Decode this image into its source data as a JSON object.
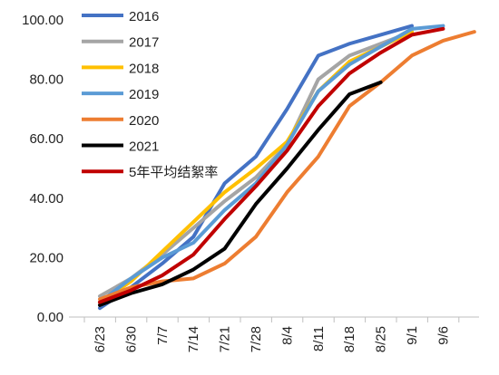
{
  "chart_data": {
    "type": "line",
    "title": "",
    "xlabel": "",
    "ylabel": "",
    "categories": [
      "6/23",
      "6/30",
      "7/7",
      "7/14",
      "7/21",
      "7/28",
      "8/4",
      "8/11",
      "8/18",
      "8/25",
      "9/1",
      "9/6",
      "",
      ""
    ],
    "ylim": [
      0,
      100
    ],
    "yticks": [
      "0.00",
      "20.00",
      "40.00",
      "60.00",
      "80.00",
      "100.00"
    ],
    "grid": false,
    "legend_position": "top-left",
    "series": [
      {
        "name": "2016",
        "color": "#4472C4",
        "values": [
          3,
          10,
          18,
          27,
          45,
          54,
          70,
          88,
          92,
          95,
          98,
          null,
          null,
          null
        ]
      },
      {
        "name": "2017",
        "color": "#A5A5A5",
        "values": [
          7,
          13,
          21,
          30,
          39,
          47,
          58,
          80,
          88,
          92,
          96,
          null,
          null,
          null
        ]
      },
      {
        "name": "2018",
        "color": "#FFC000",
        "values": [
          5,
          12,
          22,
          32,
          42,
          50,
          59,
          76,
          86,
          91,
          96,
          null,
          null,
          null
        ]
      },
      {
        "name": "2019",
        "color": "#5B9BD5",
        "values": [
          5,
          13,
          20,
          25,
          36,
          45,
          58,
          76,
          85,
          91,
          97,
          98,
          null,
          null
        ]
      },
      {
        "name": "2020",
        "color": "#ED7D31",
        "values": [
          6,
          10,
          12,
          13,
          18,
          27,
          42,
          54,
          71,
          79,
          88,
          93,
          96,
          null
        ]
      },
      {
        "name": "2021",
        "color": "#000000",
        "values": [
          4,
          8,
          11,
          16,
          23,
          38,
          50,
          63,
          75,
          79,
          null,
          null,
          null,
          null
        ]
      },
      {
        "name": "5年平均结絮率",
        "color": "#C00000",
        "values": [
          5,
          9,
          14,
          21,
          33,
          44,
          56,
          71,
          82,
          89,
          95,
          97,
          null,
          null
        ]
      }
    ]
  }
}
